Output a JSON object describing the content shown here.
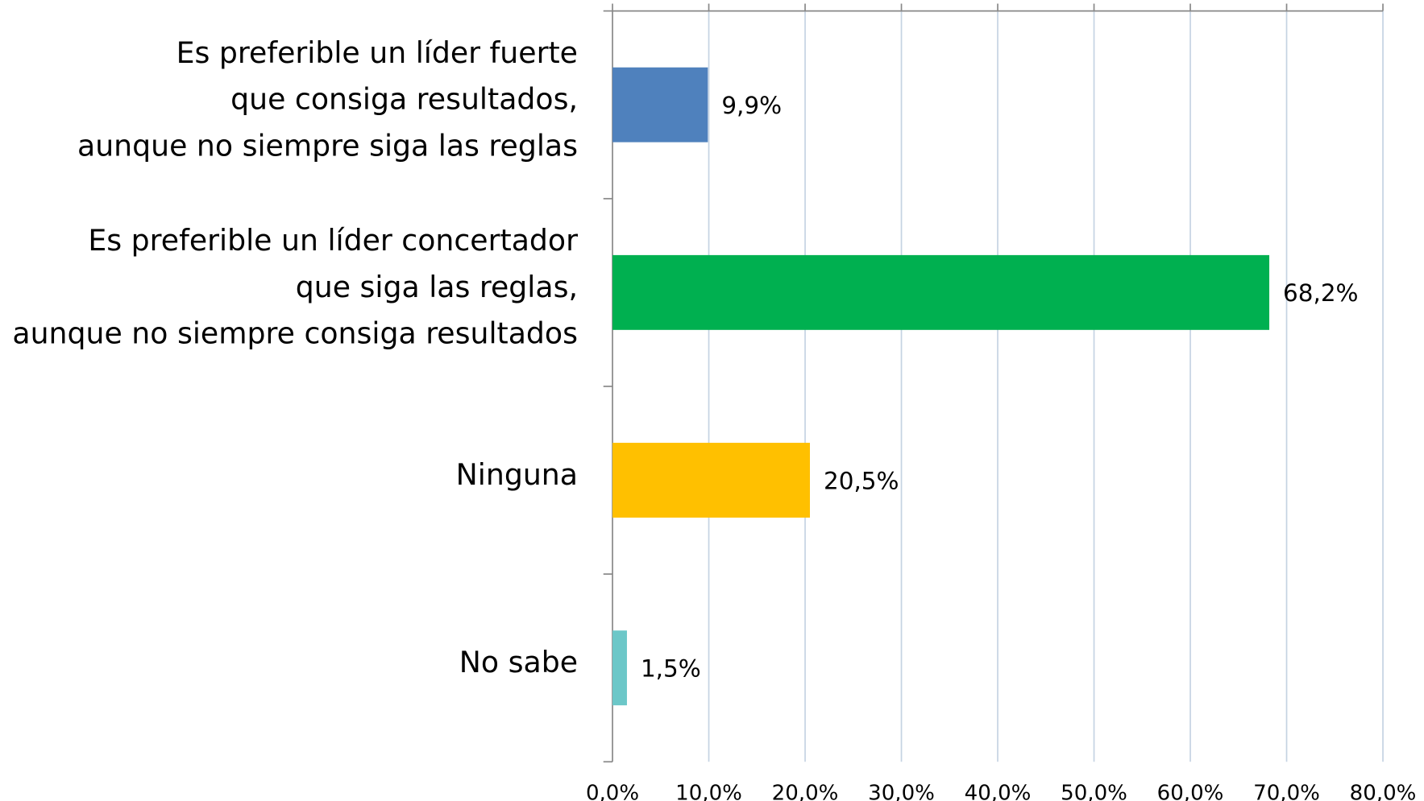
{
  "chart_data": {
    "type": "bar",
    "orientation": "horizontal",
    "categories": [
      [
        "Es preferible un líder fuerte",
        "que consiga resultados,",
        "aunque no siempre siga las reglas"
      ],
      [
        "Es preferible un líder concertador",
        "que siga las reglas,",
        "aunque no siempre consiga resultados"
      ],
      [
        "Ninguna"
      ],
      [
        "No sabe"
      ]
    ],
    "values": [
      9.9,
      68.2,
      20.5,
      1.5
    ],
    "value_labels": [
      "9,9%",
      "68,2%",
      "20,5%",
      "1,5%"
    ],
    "colors": [
      "#4f81bd",
      "#00b050",
      "#ffc000",
      "#6cc7c8"
    ],
    "xlim": [
      0,
      80
    ],
    "xticks": [
      {
        "value": 0,
        "label": "0,0%"
      },
      {
        "value": 10,
        "label": "10,0%"
      },
      {
        "value": 20,
        "label": "20,0%"
      },
      {
        "value": 30,
        "label": "30,0%"
      },
      {
        "value": 40,
        "label": "40,0%"
      },
      {
        "value": 50,
        "label": "50,0%"
      },
      {
        "value": 60,
        "label": "60,0%"
      },
      {
        "value": 70,
        "label": "70,0%"
      },
      {
        "value": 80,
        "label": "80,0%"
      }
    ],
    "grid": true
  }
}
